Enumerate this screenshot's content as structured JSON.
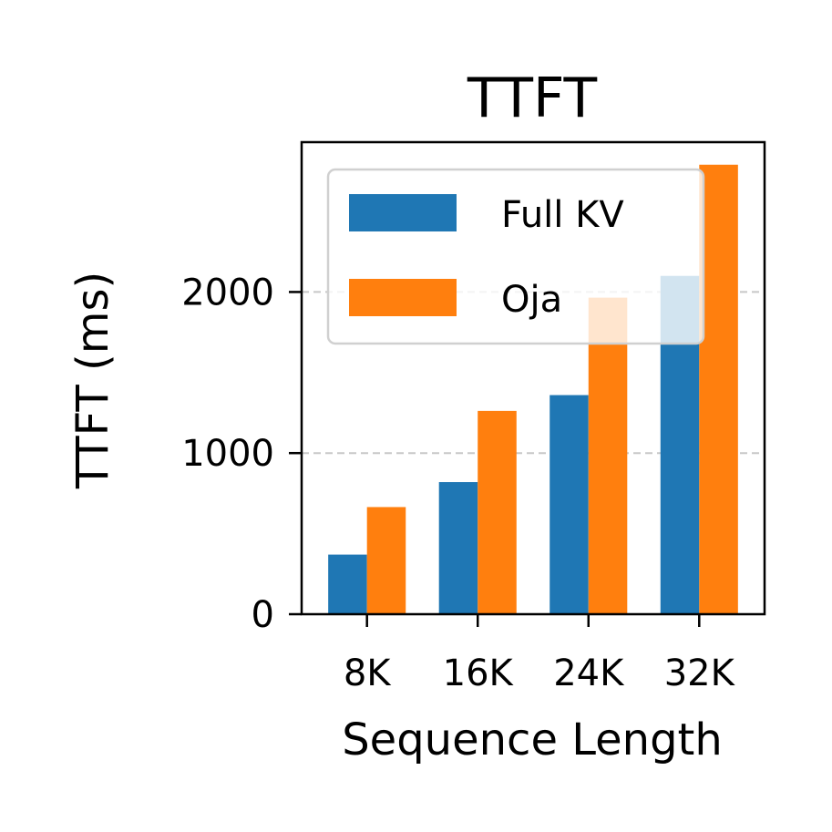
{
  "chart_data": {
    "type": "bar",
    "title": "TTFT",
    "xlabel": "Sequence Length",
    "ylabel": "TTFT (ms)",
    "categories": [
      "8K",
      "16K",
      "24K",
      "32K"
    ],
    "series": [
      {
        "name": "Full KV",
        "color": "#1f77b4",
        "values": [
          370,
          820,
          1360,
          2100
        ]
      },
      {
        "name": "Oja",
        "color": "#ff7f0e",
        "values": [
          665,
          1262,
          1965,
          2790
        ]
      }
    ],
    "ylim": [
      0,
      2930
    ],
    "yticks": [
      0,
      1000,
      2000
    ],
    "ytick_labels": [
      "0",
      "1000",
      "2000"
    ],
    "grid": "y-dashed",
    "legend": "upper-left"
  }
}
